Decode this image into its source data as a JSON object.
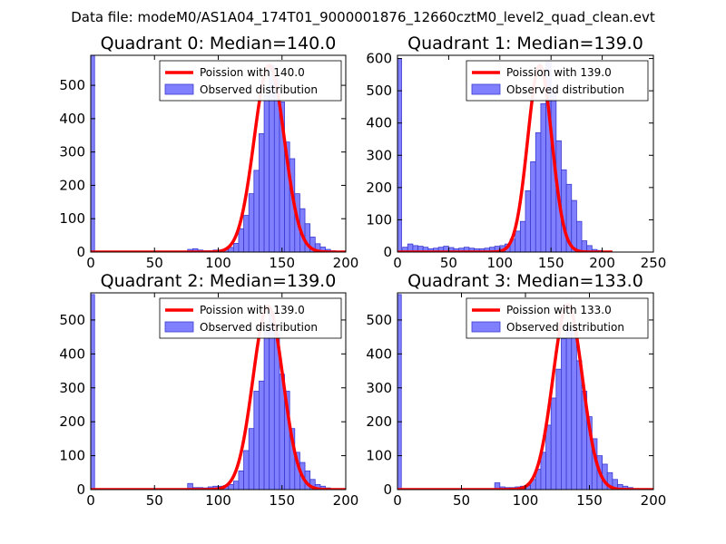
{
  "suptitle": "Data file: modeM0/AS1A04_174T01_9000001876_12660cztM0_level2_quad_clean.evt",
  "colors": {
    "bar_fill": "#8080ff",
    "bar_edge": "#3a3ad0",
    "curve": "#ff0000",
    "axis": "#000000",
    "background": "#ffffff"
  },
  "chart_data": [
    {
      "type": "bar",
      "title": "Quadrant 0: Median=140.0",
      "xlim": [
        0,
        200
      ],
      "ylim": [
        0,
        590
      ],
      "xticks": [
        0,
        50,
        100,
        150,
        200
      ],
      "yticks": [
        0,
        100,
        200,
        300,
        400,
        500
      ],
      "legend": {
        "location": "top-right",
        "curve_label": "Poission with 140.0",
        "bar_label": "Observed distribution"
      },
      "poisson": {
        "mean": 140.0,
        "peak": 560,
        "xmax": 200
      },
      "bins": [
        [
          0,
          590
        ],
        [
          76,
          8
        ],
        [
          80,
          10
        ],
        [
          84,
          6
        ],
        [
          88,
          4
        ],
        [
          92,
          4
        ],
        [
          96,
          6
        ],
        [
          100,
          6
        ],
        [
          104,
          8
        ],
        [
          108,
          14
        ],
        [
          112,
          26
        ],
        [
          116,
          70
        ],
        [
          120,
          110
        ],
        [
          124,
          175
        ],
        [
          128,
          245
        ],
        [
          132,
          355
        ],
        [
          136,
          470
        ],
        [
          140,
          560
        ],
        [
          144,
          520
        ],
        [
          148,
          450
        ],
        [
          152,
          330
        ],
        [
          156,
          280
        ],
        [
          160,
          175
        ],
        [
          164,
          130
        ],
        [
          168,
          85
        ],
        [
          172,
          45
        ],
        [
          176,
          25
        ],
        [
          180,
          15
        ],
        [
          184,
          8
        ],
        [
          188,
          4
        ]
      ]
    },
    {
      "type": "bar",
      "title": "Quadrant 1: Median=139.0",
      "xlim": [
        0,
        250
      ],
      "ylim": [
        0,
        610
      ],
      "xticks": [
        0,
        50,
        100,
        150,
        200,
        250
      ],
      "yticks": [
        0,
        100,
        200,
        300,
        400,
        500,
        600
      ],
      "legend": {
        "location": "top-right",
        "curve_label": "Poission with 139.0",
        "bar_label": "Observed distribution"
      },
      "poisson": {
        "mean": 139.0,
        "peak": 578,
        "xmax": 210
      },
      "bins": [
        [
          0,
          600
        ],
        [
          5,
          15
        ],
        [
          10,
          25
        ],
        [
          15,
          20
        ],
        [
          20,
          18
        ],
        [
          25,
          15
        ],
        [
          30,
          10
        ],
        [
          35,
          12
        ],
        [
          40,
          15
        ],
        [
          45,
          18
        ],
        [
          50,
          14
        ],
        [
          55,
          10
        ],
        [
          60,
          12
        ],
        [
          65,
          15
        ],
        [
          70,
          12
        ],
        [
          75,
          10
        ],
        [
          80,
          10
        ],
        [
          85,
          12
        ],
        [
          90,
          15
        ],
        [
          95,
          18
        ],
        [
          100,
          20
        ],
        [
          105,
          25
        ],
        [
          110,
          40
        ],
        [
          115,
          65
        ],
        [
          120,
          95
        ],
        [
          125,
          190
        ],
        [
          130,
          280
        ],
        [
          135,
          370
        ],
        [
          140,
          460
        ],
        [
          145,
          590
        ],
        [
          150,
          500
        ],
        [
          155,
          345
        ],
        [
          160,
          255
        ],
        [
          165,
          210
        ],
        [
          170,
          160
        ],
        [
          175,
          95
        ],
        [
          180,
          35
        ],
        [
          185,
          20
        ],
        [
          190,
          8
        ],
        [
          195,
          5
        ]
      ]
    },
    {
      "type": "bar",
      "title": "Quadrant 2: Median=139.0",
      "xlim": [
        0,
        200
      ],
      "ylim": [
        0,
        580
      ],
      "xticks": [
        0,
        50,
        100,
        150,
        200
      ],
      "yticks": [
        0,
        100,
        200,
        300,
        400,
        500
      ],
      "legend": {
        "location": "top-right",
        "curve_label": "Poission with 139.0",
        "bar_label": "Observed distribution"
      },
      "poisson": {
        "mean": 139.0,
        "peak": 540,
        "xmax": 200
      },
      "bins": [
        [
          0,
          575
        ],
        [
          76,
          18
        ],
        [
          80,
          6
        ],
        [
          84,
          6
        ],
        [
          88,
          5
        ],
        [
          92,
          8
        ],
        [
          96,
          10
        ],
        [
          100,
          10
        ],
        [
          104,
          12
        ],
        [
          108,
          15
        ],
        [
          112,
          25
        ],
        [
          116,
          55
        ],
        [
          120,
          115
        ],
        [
          124,
          180
        ],
        [
          128,
          290
        ],
        [
          132,
          320
        ],
        [
          136,
          470
        ],
        [
          140,
          525
        ],
        [
          144,
          460
        ],
        [
          148,
          340
        ],
        [
          152,
          290
        ],
        [
          156,
          180
        ],
        [
          160,
          110
        ],
        [
          164,
          80
        ],
        [
          168,
          55
        ],
        [
          172,
          30
        ],
        [
          176,
          15
        ],
        [
          180,
          10
        ],
        [
          184,
          5
        ],
        [
          188,
          2
        ]
      ]
    },
    {
      "type": "bar",
      "title": "Quadrant 3: Median=133.0",
      "xlim": [
        0,
        200
      ],
      "ylim": [
        0,
        580
      ],
      "xticks": [
        0,
        50,
        100,
        150,
        200
      ],
      "yticks": [
        0,
        100,
        200,
        300,
        400,
        500
      ],
      "legend": {
        "location": "top-right",
        "curve_label": "Poission with 133.0",
        "bar_label": "Observed distribution"
      },
      "poisson": {
        "mean": 133.0,
        "peak": 545,
        "xmax": 200
      },
      "bins": [
        [
          0,
          575
        ],
        [
          76,
          20
        ],
        [
          80,
          8
        ],
        [
          84,
          6
        ],
        [
          88,
          6
        ],
        [
          92,
          8
        ],
        [
          96,
          10
        ],
        [
          100,
          12
        ],
        [
          104,
          30
        ],
        [
          108,
          60
        ],
        [
          112,
          110
        ],
        [
          116,
          190
        ],
        [
          120,
          270
        ],
        [
          124,
          355
        ],
        [
          128,
          445
        ],
        [
          132,
          480
        ],
        [
          136,
          470
        ],
        [
          140,
          380
        ],
        [
          144,
          290
        ],
        [
          148,
          215
        ],
        [
          152,
          150
        ],
        [
          156,
          100
        ],
        [
          160,
          75
        ],
        [
          164,
          50
        ],
        [
          168,
          30
        ],
        [
          172,
          15
        ],
        [
          176,
          10
        ],
        [
          180,
          6
        ],
        [
          184,
          3
        ],
        [
          188,
          2
        ]
      ]
    }
  ]
}
